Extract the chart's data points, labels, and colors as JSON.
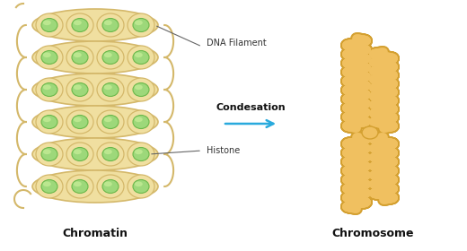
{
  "background_color": "#ffffff",
  "chromatin_label": "Chromatin",
  "chromosome_label": "Chromosome",
  "condensation_label": "Condesation",
  "dna_filament_label": "DNA Filament",
  "histone_label": "Histone",
  "outer_color": "#f0dfa0",
  "outer_stroke": "#d4b86a",
  "outer_stroke2": "#c8a84b",
  "inner_color": "#9dd87a",
  "inner_color2": "#c8ee99",
  "inner_stroke": "#6ab84a",
  "arrow_color": "#29aadd",
  "chrom_color": "#f0c060",
  "chrom_stroke": "#d4a030",
  "label_color": "#111111",
  "annot_color": "#333333",
  "line_color": "#666666"
}
